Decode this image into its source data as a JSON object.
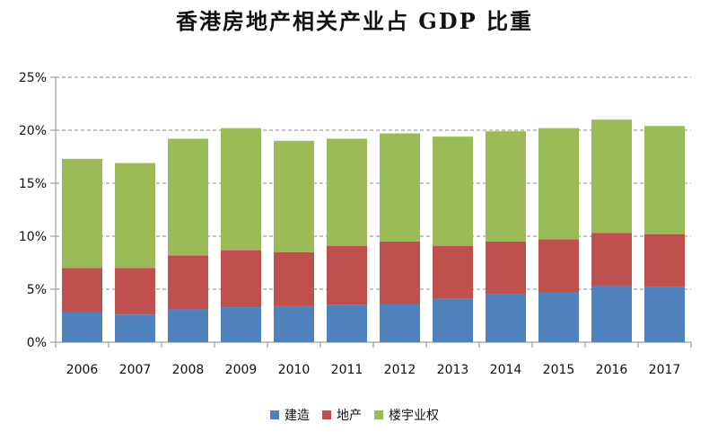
{
  "chart_data": {
    "type": "bar",
    "stacked": true,
    "title": "香港房地产相关产业占 GDP 比重",
    "categories": [
      "2006",
      "2007",
      "2008",
      "2009",
      "2010",
      "2011",
      "2012",
      "2013",
      "2014",
      "2015",
      "2016",
      "2017"
    ],
    "y_ticks": [
      "0%",
      "5%",
      "10%",
      "15%",
      "20%",
      "25%"
    ],
    "ylim": [
      0,
      25
    ],
    "grid": true,
    "legend_position": "bottom",
    "series": [
      {
        "name": "建造",
        "color": "#4f81bd",
        "values": [
          2.8,
          2.6,
          3.1,
          3.3,
          3.4,
          3.5,
          3.6,
          4.1,
          4.5,
          4.7,
          5.3,
          5.2
        ]
      },
      {
        "name": "地产",
        "color": "#c0504d",
        "values": [
          4.2,
          4.4,
          5.1,
          5.4,
          5.1,
          5.6,
          5.9,
          5.0,
          5.0,
          5.0,
          5.0,
          5.0
        ]
      },
      {
        "name": "楼宇业权",
        "color": "#9bbb59",
        "values": [
          10.3,
          9.9,
          11.0,
          11.5,
          10.5,
          10.1,
          10.2,
          10.3,
          10.4,
          10.5,
          10.7,
          10.2
        ]
      }
    ]
  }
}
